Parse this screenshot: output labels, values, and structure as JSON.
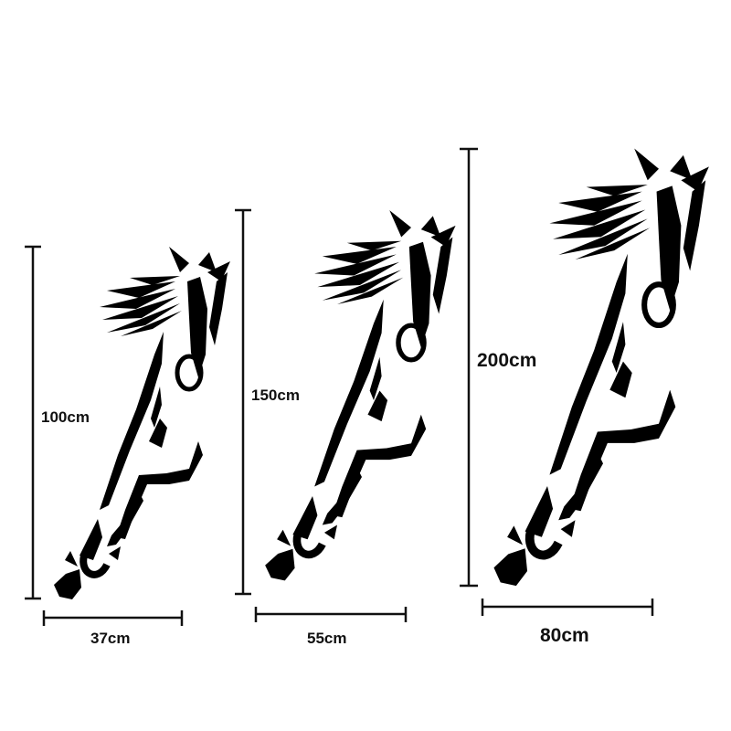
{
  "products": [
    {
      "height_label": "100cm",
      "width_label": "37cm"
    },
    {
      "height_label": "150cm",
      "width_label": "55cm"
    },
    {
      "height_label": "200cm",
      "width_label": "80cm"
    }
  ],
  "colors": {
    "silhouette": "#000000",
    "dimension_lines": "#111111",
    "background": "#ffffff"
  },
  "icons": [
    "running-horse-silhouette"
  ]
}
